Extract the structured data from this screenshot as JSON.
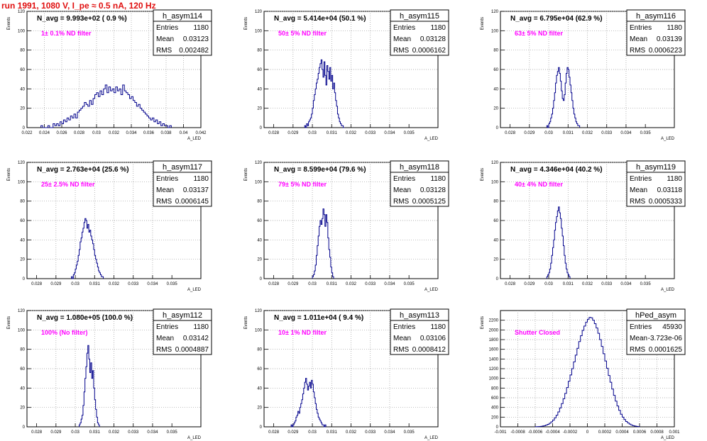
{
  "title": "run 1991,  1080 V, I_pe ≈ 0.5 nA, 120 Hz",
  "stat_labels": {
    "entries": "Entries",
    "mean": "Mean",
    "rms": "RMS"
  },
  "y_axis_label": "Events",
  "x_axis_label": "A_LED",
  "colors": {
    "histogram": "#00008b",
    "annotation": "#ff00ff",
    "title": "#e01010",
    "grid": "#999999"
  },
  "chart_data": [
    {
      "type": "histogram",
      "name": "h_asym114",
      "n_avg": "N_avg = 9.993e+02 ( 0.9 %)",
      "note": "1± 0.1% ND filter",
      "entries": "1180",
      "mean": "0.03123",
      "rms": "0.002482",
      "xlim": [
        0.022,
        0.042
      ],
      "ylim": [
        0,
        120
      ],
      "xticks": [
        "0.022",
        "0.024",
        "0.026",
        "0.028",
        "0.03",
        "0.032",
        "0.034",
        "0.036",
        "0.038",
        "0.04",
        "0.042"
      ],
      "yticks": [
        "0",
        "20",
        "40",
        "60",
        "80",
        "100",
        "120"
      ],
      "bin_start": 0.0236,
      "bin_width": 0.0002,
      "values": [
        2,
        0,
        0,
        0,
        2,
        0,
        0,
        4,
        2,
        4,
        2,
        6,
        4,
        8,
        6,
        10,
        8,
        12,
        10,
        14,
        10,
        16,
        18,
        20,
        22,
        26,
        24,
        22,
        28,
        24,
        30,
        34,
        36,
        32,
        38,
        34,
        40,
        44,
        36,
        42,
        38,
        40,
        36,
        42,
        38,
        40,
        34,
        44,
        38,
        36,
        34,
        30,
        32,
        28,
        26,
        22,
        24,
        20,
        18,
        16,
        14,
        12,
        10,
        8,
        10,
        6,
        8,
        4,
        6,
        2,
        4,
        2,
        2,
        0,
        2
      ]
    },
    {
      "type": "histogram",
      "name": "h_asym115",
      "n_avg": "N_avg = 5.414e+04 (50.1 %)",
      "note": "50± 5% ND filter",
      "entries": "1180",
      "mean": "0.03128",
      "rms": "0.0006162",
      "xlim": [
        0.0275,
        0.0365
      ],
      "ylim": [
        0,
        120
      ],
      "xticks": [
        "0.028",
        "0.029",
        "0.03",
        "0.031",
        "0.032",
        "0.033",
        "0.034",
        "0.035"
      ],
      "yticks": [
        "0",
        "20",
        "40",
        "60",
        "80",
        "100",
        "120"
      ],
      "bin_start": 0.0296,
      "bin_width": 5e-05,
      "values": [
        2,
        0,
        4,
        2,
        6,
        8,
        10,
        14,
        20,
        28,
        34,
        40,
        46,
        50,
        56,
        62,
        66,
        70,
        60,
        52,
        68,
        54,
        44,
        64,
        58,
        50,
        62,
        48,
        54,
        40,
        46,
        36,
        28,
        22,
        14,
        10,
        6,
        4,
        2,
        2,
        0
      ]
    },
    {
      "type": "histogram",
      "name": "h_asym116",
      "n_avg": "N_avg = 6.795e+04 (62.9 %)",
      "note": "63± 5% ND filter",
      "entries": "1180",
      "mean": "0.03139",
      "rms": "0.0006223",
      "xlim": [
        0.0275,
        0.0365
      ],
      "ylim": [
        0,
        120
      ],
      "xticks": [
        "0.028",
        "0.029",
        "0.03",
        "0.031",
        "0.032",
        "0.033",
        "0.034",
        "0.035"
      ],
      "yticks": [
        "0",
        "20",
        "40",
        "60",
        "80",
        "100",
        "120"
      ],
      "bin_start": 0.0299,
      "bin_width": 5e-05,
      "values": [
        2,
        0,
        4,
        6,
        10,
        14,
        20,
        28,
        36,
        46,
        54,
        58,
        62,
        56,
        48,
        38,
        30,
        28,
        34,
        46,
        56,
        62,
        60,
        52,
        44,
        36,
        28,
        20,
        14,
        10,
        6,
        4,
        2,
        2
      ]
    },
    {
      "type": "histogram",
      "name": "h_asym117",
      "n_avg": "N_avg = 2.763e+04 (25.6 %)",
      "note": "25± 2.5% ND filter",
      "entries": "1180",
      "mean": "0.03137",
      "rms": "0.0006145",
      "xlim": [
        0.0275,
        0.0365
      ],
      "ylim": [
        0,
        120
      ],
      "xticks": [
        "0.028",
        "0.029",
        "0.03",
        "0.031",
        "0.032",
        "0.033",
        "0.034",
        "0.035"
      ],
      "yticks": [
        "0",
        "20",
        "40",
        "60",
        "80",
        "100",
        "120"
      ],
      "bin_start": 0.0298,
      "bin_width": 5e-05,
      "values": [
        2,
        0,
        4,
        6,
        10,
        14,
        18,
        24,
        30,
        38,
        42,
        48,
        52,
        58,
        62,
        60,
        52,
        56,
        48,
        50,
        44,
        40,
        36,
        30,
        24,
        20,
        16,
        12,
        8,
        6,
        4,
        2,
        2
      ]
    },
    {
      "type": "histogram",
      "name": "h_asym118",
      "n_avg": "N_avg = 8.599e+04 (79.6 %)",
      "note": "79± 5% ND filter",
      "entries": "1180",
      "mean": "0.03128",
      "rms": "0.0005125",
      "xlim": [
        0.0275,
        0.0365
      ],
      "ylim": [
        0,
        120
      ],
      "xticks": [
        "0.028",
        "0.029",
        "0.03",
        "0.031",
        "0.032",
        "0.033",
        "0.034",
        "0.035"
      ],
      "yticks": [
        "0",
        "20",
        "40",
        "60",
        "80",
        "100",
        "120"
      ],
      "bin_start": 0.03,
      "bin_width": 5e-05,
      "values": [
        2,
        4,
        8,
        14,
        24,
        34,
        44,
        54,
        60,
        56,
        62,
        72,
        66,
        54,
        66,
        58,
        42,
        30,
        22,
        12,
        6,
        2
      ]
    },
    {
      "type": "histogram",
      "name": "h_asym119",
      "n_avg": "N_avg = 4.346e+04 (40.2 %)",
      "note": "40± 4% ND filter",
      "entries": "1180",
      "mean": "0.03118",
      "rms": "0.0005333",
      "xlim": [
        0.0275,
        0.0365
      ],
      "ylim": [
        0,
        120
      ],
      "xticks": [
        "0.028",
        "0.029",
        "0.03",
        "0.031",
        "0.032",
        "0.033",
        "0.034",
        "0.035"
      ],
      "yticks": [
        "0",
        "20",
        "40",
        "60",
        "80",
        "100",
        "120"
      ],
      "bin_start": 0.0299,
      "bin_width": 5e-05,
      "values": [
        2,
        4,
        6,
        10,
        16,
        24,
        32,
        40,
        50,
        58,
        64,
        70,
        74,
        68,
        62,
        52,
        44,
        34,
        24,
        16,
        10,
        6,
        4,
        2
      ]
    },
    {
      "type": "histogram",
      "name": "h_asym112",
      "n_avg": "N_avg = 1.080e+05 (100.0 %)",
      "note": "100% (No filter)",
      "entries": "1180",
      "mean": "0.03142",
      "rms": "0.0004887",
      "xlim": [
        0.0275,
        0.0365
      ],
      "ylim": [
        0,
        120
      ],
      "xticks": [
        "0.028",
        "0.029",
        "0.03",
        "0.031",
        "0.032",
        "0.033",
        "0.034",
        "0.035"
      ],
      "yticks": [
        "0",
        "20",
        "40",
        "60",
        "80",
        "100",
        "120"
      ],
      "bin_start": 0.0302,
      "bin_width": 5e-05,
      "values": [
        2,
        4,
        8,
        12,
        22,
        36,
        50,
        62,
        76,
        84,
        70,
        56,
        66,
        50,
        58,
        40,
        28,
        18,
        10,
        4,
        2
      ]
    },
    {
      "type": "histogram",
      "name": "h_asym113",
      "n_avg": "N_avg = 1.011e+04 ( 9.4 %)",
      "note": "10± 1% ND filter",
      "entries": "1180",
      "mean": "0.03106",
      "rms": "0.0008412",
      "xlim": [
        0.0275,
        0.0365
      ],
      "ylim": [
        0,
        120
      ],
      "xticks": [
        "0.028",
        "0.029",
        "0.03",
        "0.031",
        "0.032",
        "0.033",
        "0.034",
        "0.035"
      ],
      "yticks": [
        "0",
        "20",
        "40",
        "60",
        "80",
        "100",
        "120"
      ],
      "bin_start": 0.0289,
      "bin_width": 5e-05,
      "values": [
        2,
        0,
        2,
        4,
        6,
        10,
        12,
        16,
        14,
        20,
        24,
        28,
        34,
        40,
        46,
        50,
        44,
        38,
        42,
        46,
        40,
        48,
        44,
        36,
        30,
        24,
        18,
        14,
        10,
        8,
        6,
        4,
        2,
        2,
        0,
        2
      ]
    },
    {
      "type": "histogram",
      "name": "hPed_asym",
      "n_avg": "",
      "note": "Shutter Closed",
      "entries": "45930",
      "mean": "-3.723e-06",
      "rms": "0.0001625",
      "xlim": [
        -0.001,
        0.001
      ],
      "ylim": [
        0,
        2400
      ],
      "xticks": [
        "-0.001",
        "-0.0008",
        "-0.0006",
        "-0.0004",
        "-0.0002",
        "0",
        "0.0002",
        "0.0004",
        "0.0006",
        "0.0008",
        "0.001"
      ],
      "yticks": [
        "0",
        "200",
        "400",
        "600",
        "800",
        "1000",
        "1200",
        "1400",
        "1600",
        "1800",
        "2000",
        "2200"
      ],
      "bin_start": -0.0006,
      "bin_width": 2e-05,
      "values": [
        2,
        4,
        6,
        10,
        16,
        24,
        36,
        52,
        74,
        102,
        138,
        184,
        240,
        308,
        390,
        480,
        580,
        690,
        810,
        940,
        1070,
        1200,
        1340,
        1480,
        1620,
        1760,
        1880,
        1990,
        2080,
        2160,
        2220,
        2260,
        2250,
        2200,
        2130,
        2040,
        1930,
        1800,
        1660,
        1510,
        1360,
        1210,
        1060,
        920,
        780,
        650,
        530,
        430,
        340,
        260,
        200,
        150,
        110,
        80,
        56,
        38,
        24,
        16,
        10,
        6
      ]
    }
  ]
}
